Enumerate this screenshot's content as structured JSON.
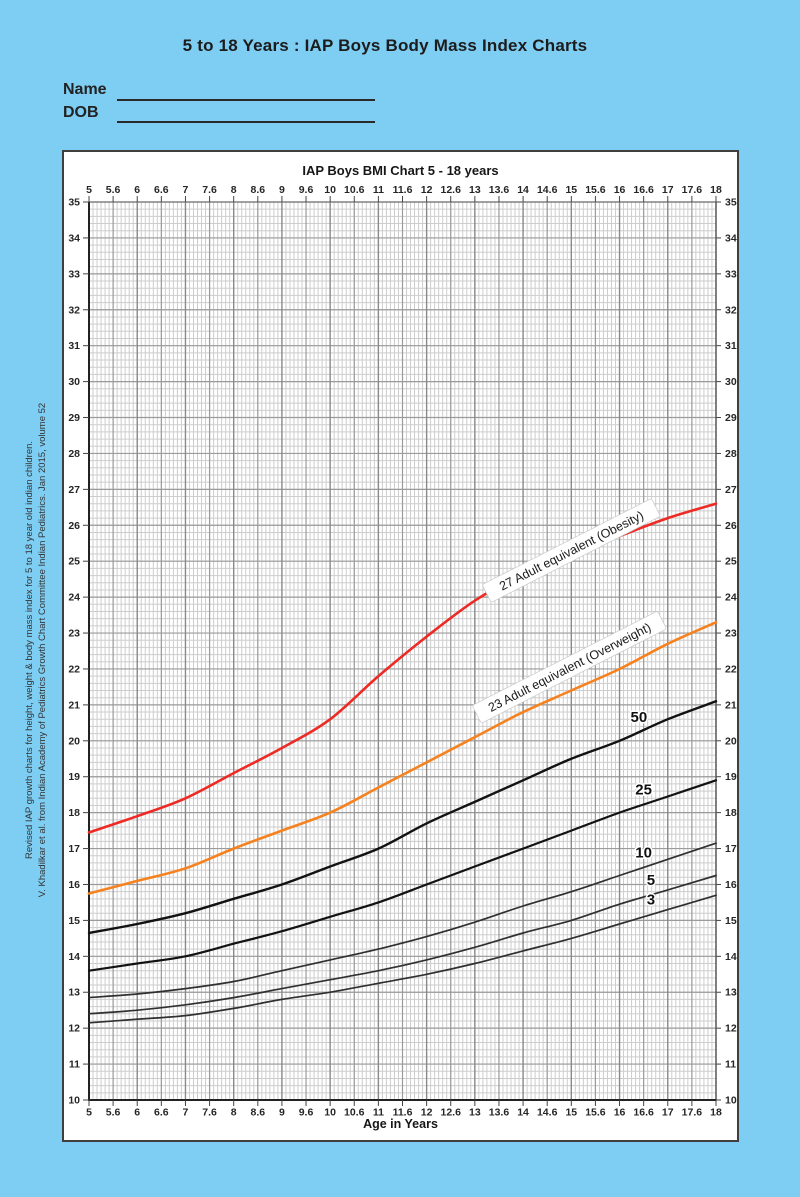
{
  "page": {
    "background_color": "#7ECDF2",
    "title": "5 to 18 Years : IAP Boys Body Mass Index Charts",
    "fields": {
      "name_label": "Name",
      "name_value": "",
      "dob_label": "DOB",
      "dob_value": ""
    },
    "citation": {
      "line1": "Revised IAP growth charts for height, weight & body mass index for 5 to 18 year old indian children.",
      "line2": "V. Khadilkar et al. from Indian Academy of Pediatrics Growth Chart Committee Indian Pediatrics. Jan 2015, volume 52"
    }
  },
  "chart_data": {
    "type": "line",
    "title": "IAP Boys BMI Chart 5 - 18 years",
    "xlabel": "Age in Years",
    "ylabel": "",
    "xlim": [
      5,
      18
    ],
    "ylim": [
      10,
      35
    ],
    "x_tick_labels": [
      "5",
      "5.6",
      "6",
      "6.6",
      "7",
      "7.6",
      "8",
      "8.6",
      "9",
      "9.6",
      "10",
      "10.6",
      "11",
      "11.6",
      "12",
      "12.6",
      "13",
      "13.6",
      "14",
      "14.6",
      "15",
      "15.6",
      "16",
      "16.6",
      "17",
      "17.6",
      "18"
    ],
    "x_tick_values": [
      5,
      5.5,
      6,
      6.5,
      7,
      7.5,
      8,
      8.5,
      9,
      9.5,
      10,
      10.5,
      11,
      11.5,
      12,
      12.5,
      13,
      13.5,
      14,
      14.5,
      15,
      15.5,
      16,
      16.5,
      17,
      17.5,
      18
    ],
    "y_ticks": [
      35,
      34,
      33,
      32,
      31,
      30,
      29,
      28,
      27,
      26,
      25,
      24,
      23,
      22,
      21,
      20,
      19,
      18,
      17,
      16,
      15,
      14,
      13,
      12,
      11,
      10
    ],
    "grid": {
      "minor_x_step_years": 0.08333,
      "minor_y_step": 0.2,
      "major_x_step_years": 0.5,
      "major_y_step": 1,
      "minor_color": "#cdcdcd",
      "major_color": "#9b9b9b",
      "year_line_color": "#8a8a8a"
    },
    "x": [
      5,
      6,
      7,
      8,
      9,
      10,
      11,
      12,
      13,
      14,
      15,
      16,
      17,
      18
    ],
    "series": [
      {
        "name": "27 Adult equivalent (Obesity)",
        "color": "#EE2A24",
        "width": 2.6,
        "values": [
          17.45,
          17.9,
          18.4,
          19.1,
          19.8,
          20.6,
          21.8,
          22.9,
          23.9,
          24.65,
          25.2,
          25.7,
          26.2,
          26.6
        ]
      },
      {
        "name": "23 Adult equivalent (Overweight)",
        "color": "#F5821F",
        "width": 2.6,
        "values": [
          15.75,
          16.1,
          16.45,
          17.0,
          17.5,
          18.0,
          18.7,
          19.4,
          20.1,
          20.8,
          21.4,
          22.0,
          22.7,
          23.3
        ]
      },
      {
        "name": "50th percentile",
        "short_label": "50",
        "label_age": 16.4,
        "color": "#121212",
        "width": 2.4,
        "values": [
          14.65,
          14.9,
          15.2,
          15.6,
          16.0,
          16.5,
          17.0,
          17.7,
          18.3,
          18.9,
          19.5,
          20.0,
          20.6,
          21.1
        ]
      },
      {
        "name": "25th percentile",
        "short_label": "25",
        "label_age": 16.5,
        "color": "#121212",
        "width": 2.2,
        "values": [
          13.6,
          13.8,
          14.0,
          14.35,
          14.7,
          15.1,
          15.5,
          16.0,
          16.5,
          17.0,
          17.5,
          18.0,
          18.45,
          18.9
        ]
      },
      {
        "name": "10th percentile",
        "short_label": "10",
        "label_age": 16.5,
        "color": "#303030",
        "width": 1.7,
        "values": [
          12.85,
          12.95,
          13.1,
          13.3,
          13.6,
          13.9,
          14.2,
          14.55,
          14.95,
          15.4,
          15.8,
          16.25,
          16.7,
          17.15
        ]
      },
      {
        "name": "5th percentile",
        "short_label": "5",
        "label_age": 16.65,
        "color": "#303030",
        "width": 1.7,
        "values": [
          12.4,
          12.5,
          12.65,
          12.85,
          13.1,
          13.35,
          13.6,
          13.9,
          14.25,
          14.65,
          15.0,
          15.45,
          15.85,
          16.25
        ]
      },
      {
        "name": "3rd percentile",
        "short_label": "3",
        "label_age": 16.65,
        "color": "#303030",
        "width": 1.7,
        "values": [
          12.15,
          12.25,
          12.35,
          12.55,
          12.8,
          13.0,
          13.25,
          13.5,
          13.8,
          14.15,
          14.5,
          14.9,
          15.3,
          15.7
        ]
      }
    ],
    "annotations": [
      {
        "text": "27 Adult equivalent (Obesity)",
        "age": 15.0,
        "bmi": 25.3,
        "rotation_deg": -27
      },
      {
        "text": "23 Adult equivalent (Overweight)",
        "age": 14.96,
        "bmi": 22.05,
        "rotation_deg": -27
      }
    ],
    "legend_position": "labels-on-curves"
  }
}
